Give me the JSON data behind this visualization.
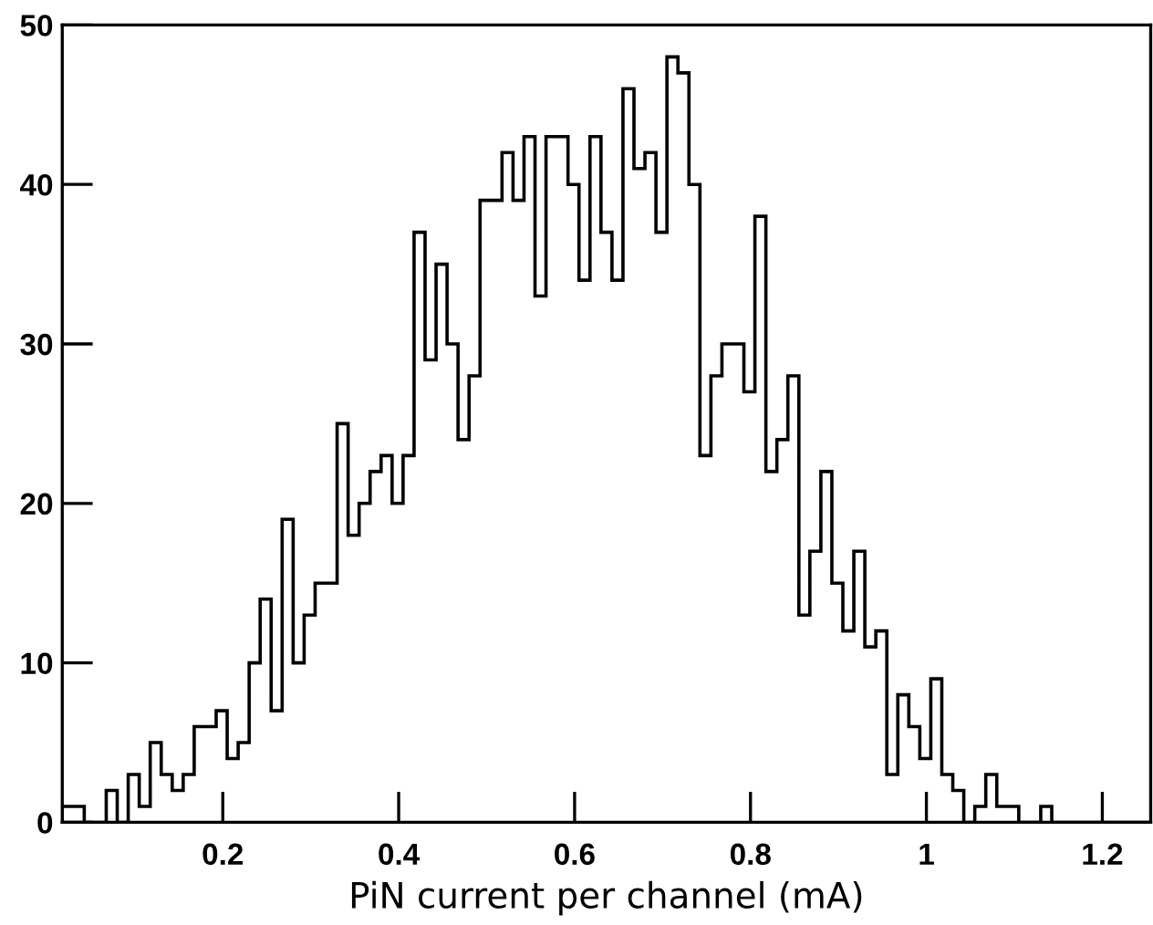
{
  "chart_data": {
    "type": "histogram",
    "xlabel": "PiN current per channel (mA)",
    "color": "#000000",
    "bins": [
      0.0175,
      0.03,
      0.0425,
      0.055,
      0.0675,
      0.08,
      0.0925,
      0.105,
      0.1175,
      0.13,
      0.1425,
      0.155,
      0.1675,
      0.18,
      0.1925,
      0.205,
      0.2175,
      0.23,
      0.2425,
      0.255,
      0.2675,
      0.28,
      0.2925,
      0.305,
      0.3175,
      0.33,
      0.3425,
      0.355,
      0.3675,
      0.38,
      0.3925,
      0.405,
      0.4175,
      0.43,
      0.4425,
      0.455,
      0.4675,
      0.48,
      0.4925,
      0.505,
      0.5175,
      0.53,
      0.5425,
      0.555,
      0.5675,
      0.58,
      0.5925,
      0.605,
      0.6175,
      0.63,
      0.6425,
      0.655,
      0.6675,
      0.68,
      0.6925,
      0.705,
      0.7175,
      0.73,
      0.7425,
      0.755,
      0.7675,
      0.78,
      0.7925,
      0.805,
      0.8175,
      0.83,
      0.8425,
      0.855,
      0.8675,
      0.88,
      0.8925,
      0.905,
      0.9175,
      0.93,
      0.9425,
      0.955,
      0.9675,
      0.98,
      0.9925,
      1.005,
      1.0175,
      1.03,
      1.0425,
      1.055,
      1.0675,
      1.08,
      1.0925,
      1.105,
      1.1175,
      1.13,
      1.1425,
      1.155,
      1.1675,
      1.18,
      1.1925,
      1.205,
      1.2175,
      1.23,
      1.2425,
      1.255
    ],
    "values": [
      1,
      1,
      0,
      0,
      2,
      0,
      3,
      1,
      5,
      3,
      2,
      3,
      6,
      6,
      7,
      4,
      5,
      10,
      14,
      7,
      19,
      10,
      13,
      15,
      15,
      25,
      18,
      20,
      22,
      23,
      20,
      23,
      37,
      29,
      35,
      30,
      24,
      28,
      39,
      39,
      42,
      39,
      43,
      33,
      43,
      43,
      40,
      34,
      43,
      37,
      34,
      46,
      41,
      42,
      37,
      48,
      47,
      40,
      23,
      28,
      30,
      30,
      27,
      38,
      22,
      24,
      28,
      13,
      17,
      22,
      15,
      12,
      17,
      11,
      12,
      3,
      8,
      6,
      4,
      9,
      3,
      2,
      0,
      1,
      3,
      1,
      1,
      0,
      0,
      1,
      0,
      0,
      0,
      0,
      0,
      0,
      0,
      0,
      0
    ],
    "xlim": [
      0.0175,
      1.255
    ],
    "ylim": [
      0,
      50
    ],
    "xticks": [
      0.2,
      0.4,
      0.6,
      0.8,
      1,
      1.2
    ],
    "yticks": [
      0,
      10,
      20,
      30,
      40,
      50
    ],
    "grid": false
  }
}
